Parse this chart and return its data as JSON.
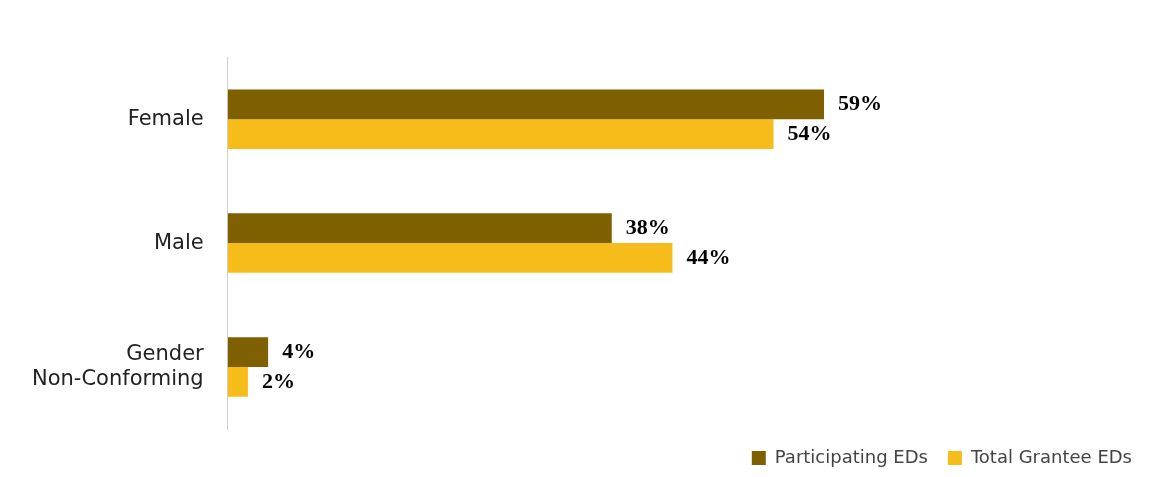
{
  "chart_data": {
    "type": "bar",
    "orientation": "horizontal",
    "categories": [
      "Female",
      "Male",
      "Gender Non-Conforming"
    ],
    "series": [
      {
        "name": "Participating EDs",
        "color": "#7f6000",
        "values": [
          59,
          38,
          4
        ],
        "value_labels": [
          "59%",
          "38%",
          "4%"
        ]
      },
      {
        "name": "Total Grantee EDs",
        "color": "#f5bc1a",
        "values": [
          54,
          44,
          2
        ],
        "value_labels": [
          "54%",
          "44%",
          "2%"
        ]
      }
    ],
    "legend": "bottom right",
    "grid": false,
    "tick_labels": "y"
  }
}
